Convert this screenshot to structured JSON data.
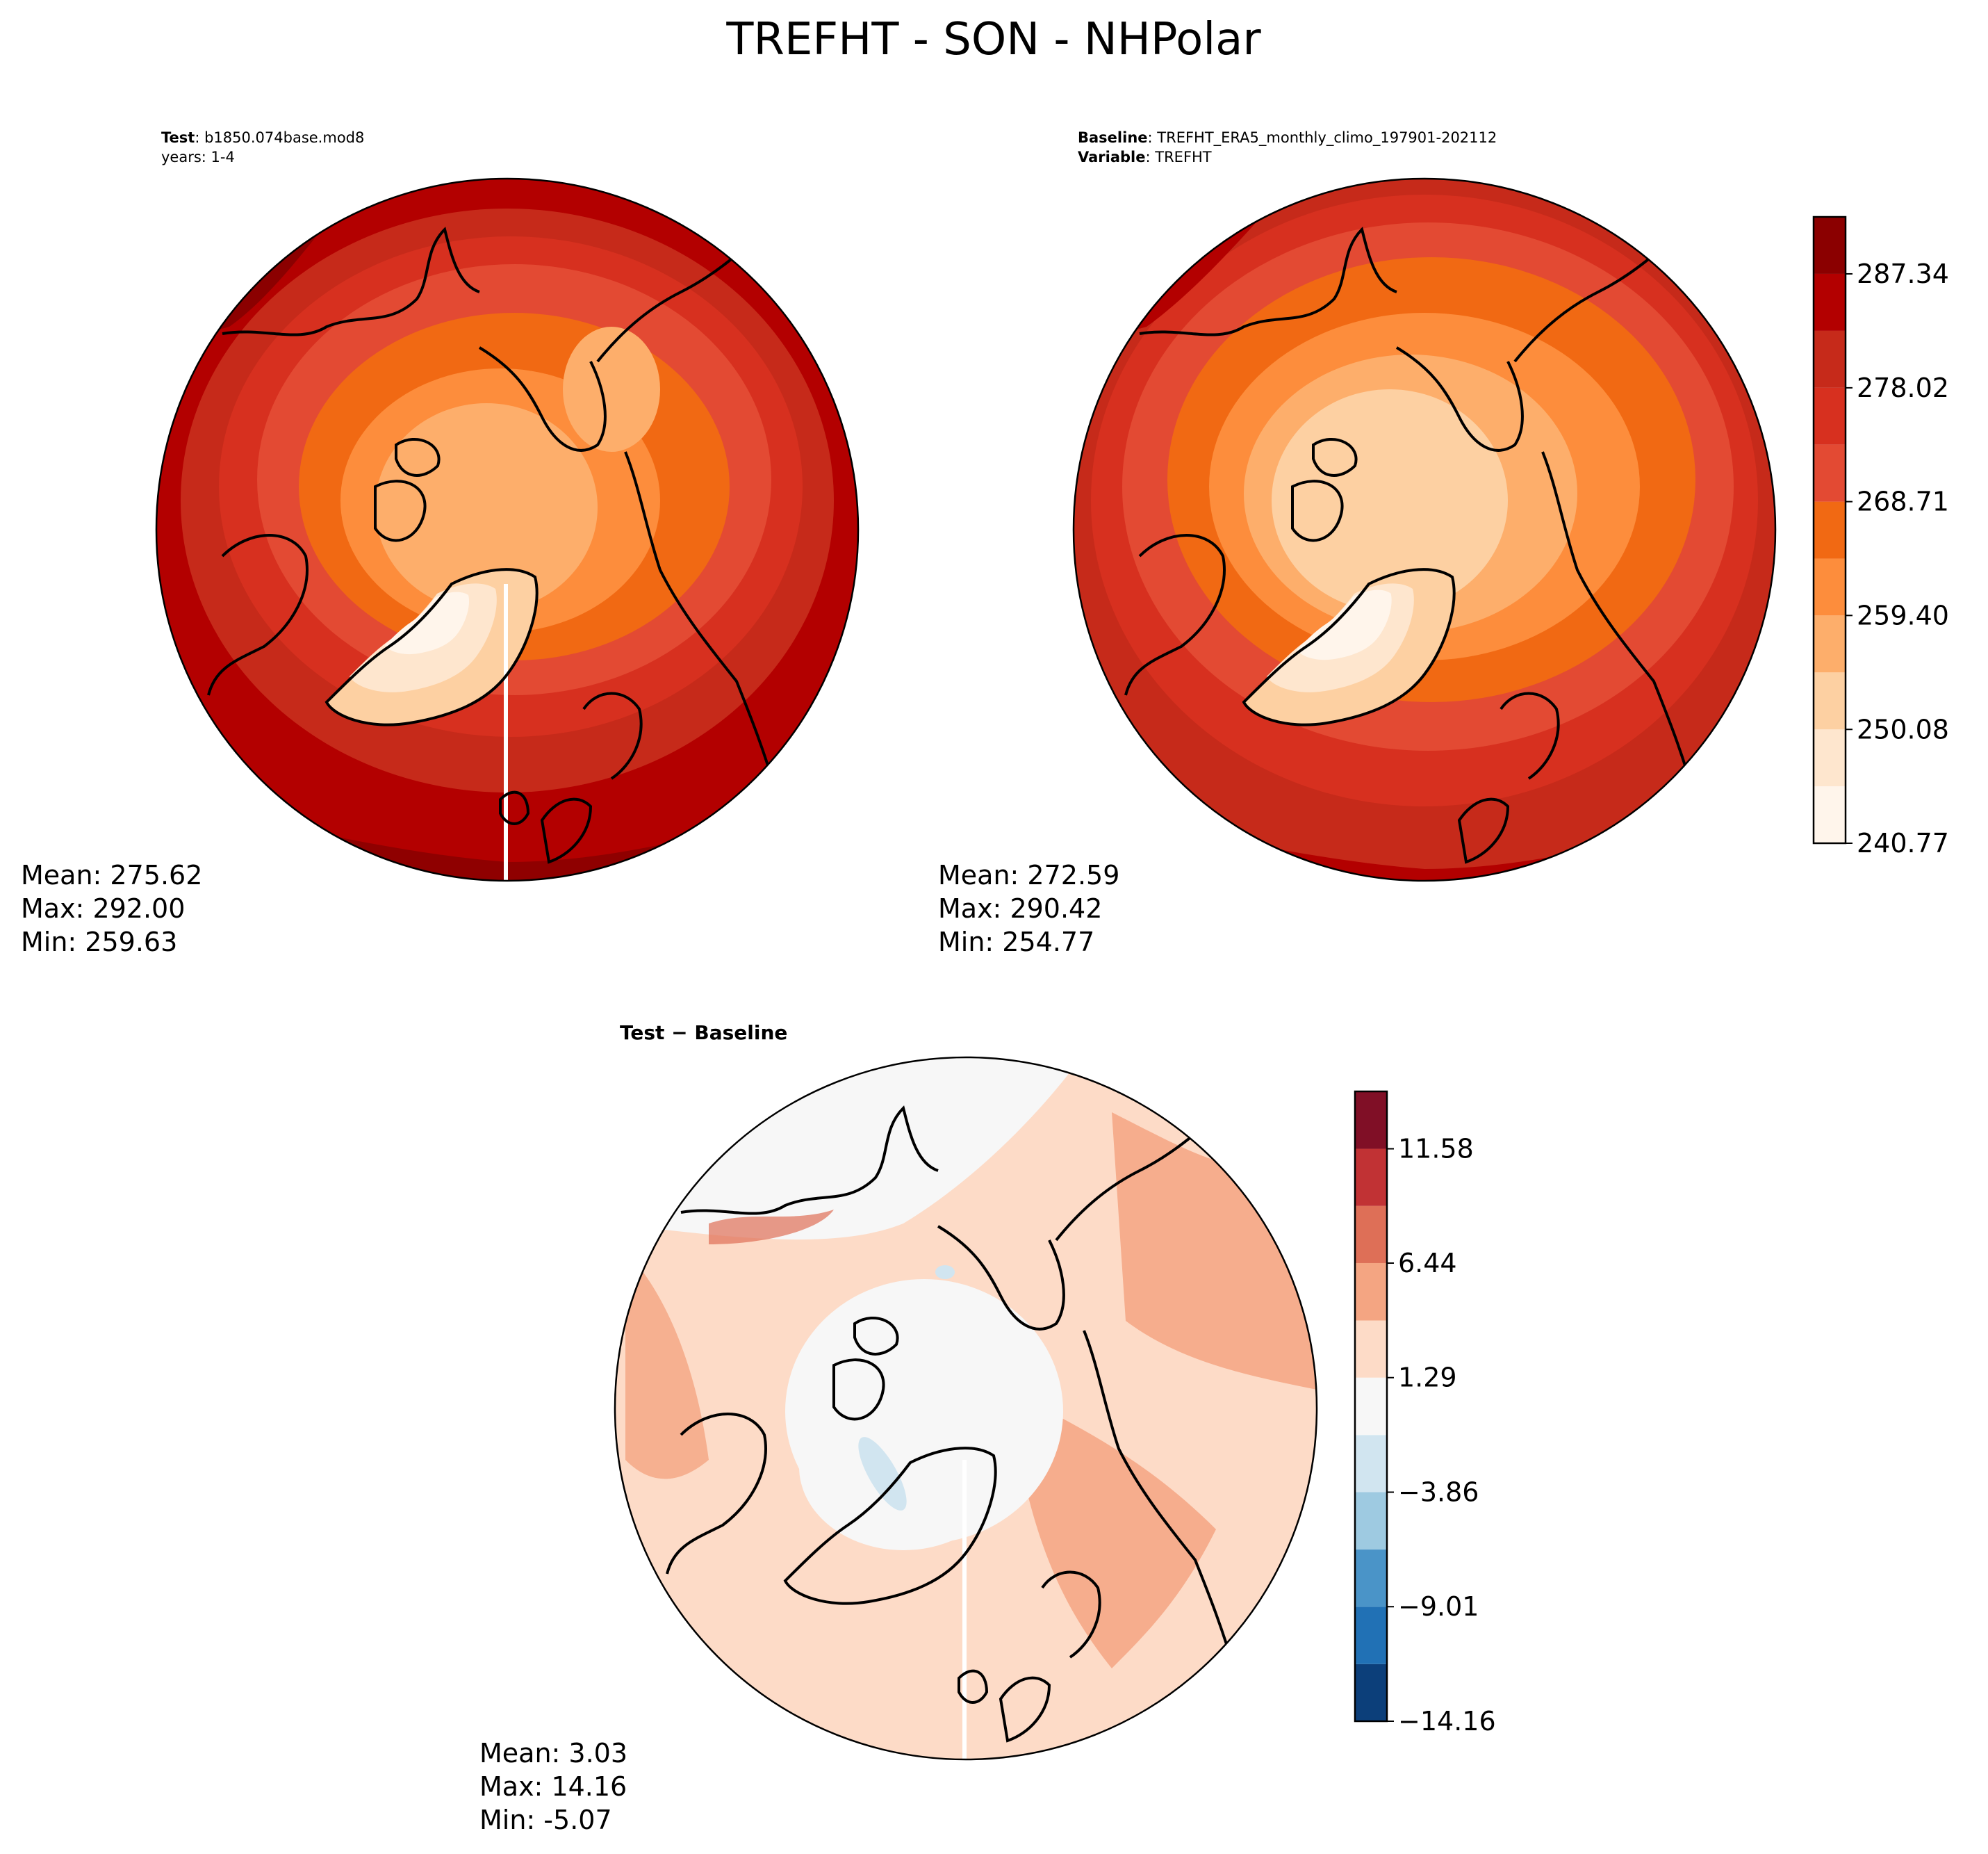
{
  "figure": {
    "title": "TREFHT - SON - NHPolar"
  },
  "panels": [
    {
      "id": "test",
      "header": [
        {
          "bold": "Test",
          "text": "b1850.074base.mod8"
        },
        {
          "bold": "",
          "text": "years: 1-4"
        }
      ],
      "stats": {
        "mean": "Mean: 275.62",
        "max": "Max: 292.00",
        "min": "Min: 259.63"
      }
    },
    {
      "id": "baseline",
      "header": [
        {
          "bold": "Baseline",
          "text": "TREFHT_ERA5_monthly_climo_197901-202112"
        },
        {
          "bold": "Variable",
          "text": "TREFHT"
        }
      ],
      "stats": {
        "mean": "Mean: 272.59",
        "max": "Max: 290.42",
        "min": "Min: 254.77"
      }
    },
    {
      "id": "diff",
      "header": [
        {
          "bold": "Test − Baseline",
          "text": ""
        }
      ],
      "stats": {
        "mean": "Mean:  3.03",
        "max": "Max: 14.16",
        "min": "Min: -5.07"
      }
    }
  ],
  "chart_data": [
    {
      "type": "heatmap",
      "projection": "north polar stereographic",
      "panel": "test",
      "mean": 275.62,
      "max": 292.0,
      "min": 259.63
    },
    {
      "type": "heatmap",
      "projection": "north polar stereographic",
      "panel": "baseline",
      "mean": 272.59,
      "max": 290.42,
      "min": 254.77
    },
    {
      "type": "heatmap",
      "projection": "north polar stereographic",
      "panel": "diff",
      "mean": 3.03,
      "max": 14.16,
      "min": -5.07
    }
  ],
  "colorbars": {
    "abs": {
      "levels": [
        240.77,
        245.43,
        250.08,
        254.74,
        259.4,
        264.05,
        268.71,
        273.37,
        278.02,
        282.68,
        287.34,
        292.0
      ],
      "tick_labels": [
        "240.77",
        "250.08",
        "259.40",
        "268.71",
        "278.02",
        "287.34"
      ],
      "tick_values": [
        240.77,
        250.08,
        259.4,
        268.71,
        278.02,
        287.34
      ],
      "colors": [
        "#fff5eb",
        "#fee6ce",
        "#fdd0a2",
        "#fdae6b",
        "#fd8d3c",
        "#f16913",
        "#e34a33",
        "#d7301f",
        "#c62a1a",
        "#b30000",
        "#8b0000"
      ],
      "extend_max": true
    },
    "diff": {
      "levels": [
        -14.16,
        -11.59,
        -9.01,
        -6.44,
        -3.86,
        -1.29,
        1.29,
        3.86,
        6.44,
        9.01,
        11.58,
        14.16
      ],
      "tick_labels": [
        "−14.16",
        "−9.01",
        "−3.86",
        "1.29",
        "6.44",
        "11.58"
      ],
      "tick_values": [
        -14.16,
        -9.01,
        -3.86,
        1.29,
        6.44,
        11.58
      ],
      "colors": [
        "#0c3f7a",
        "#2171b5",
        "#4a94c8",
        "#9ecae1",
        "#d1e5f0",
        "#f7f7f7",
        "#fddbc7",
        "#f4a582",
        "#de6f57",
        "#c13234",
        "#800f26"
      ],
      "extend_max": true
    }
  }
}
